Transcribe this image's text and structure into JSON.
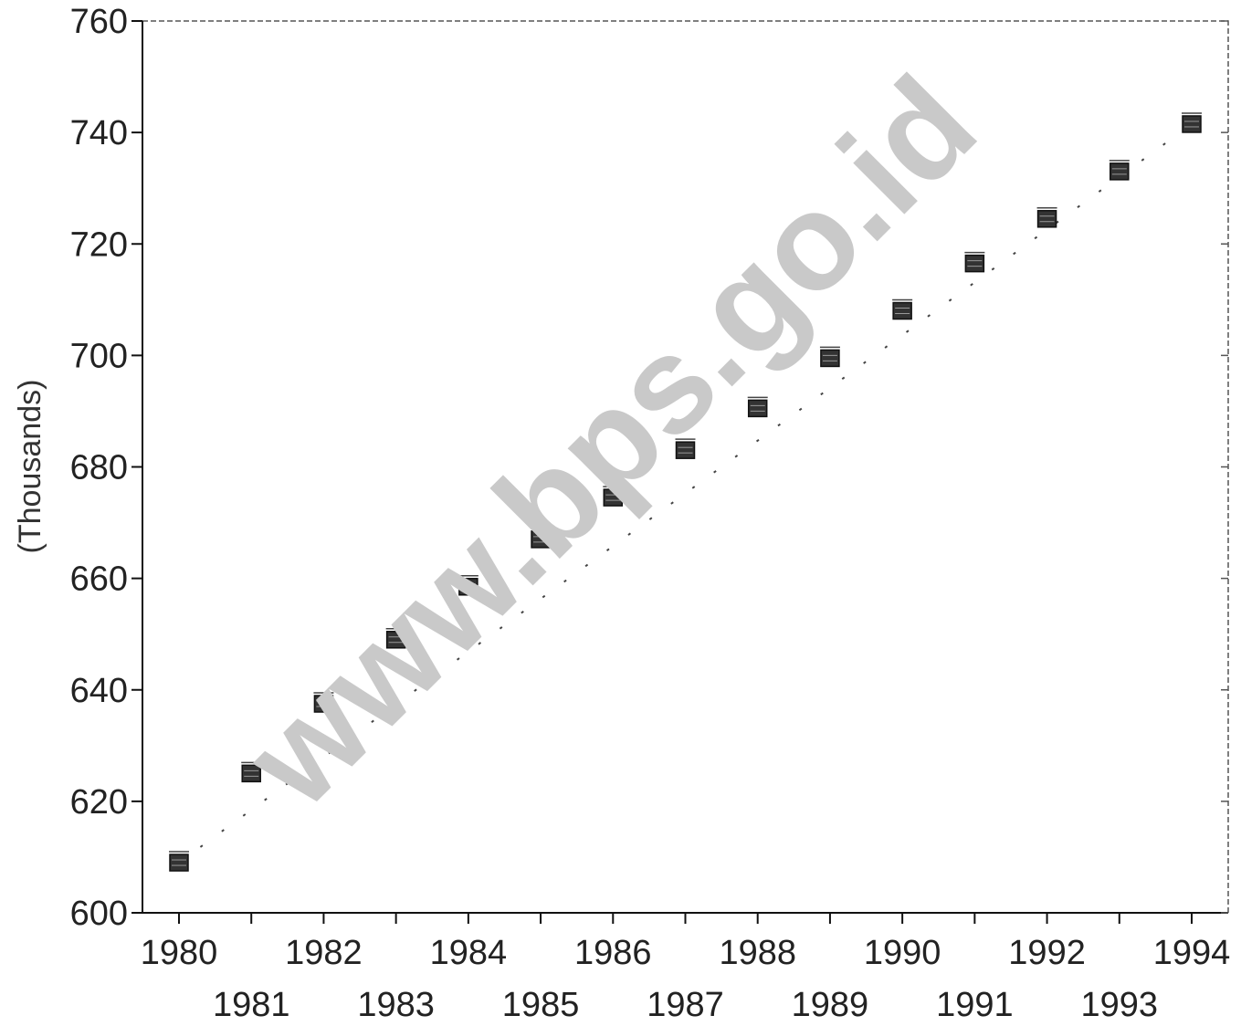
{
  "chart_data": {
    "type": "scatter",
    "title": "",
    "xlabel": "",
    "ylabel": "(Thousands)",
    "x_tick_labels": [
      "1980",
      "1981",
      "1982",
      "1983",
      "1984",
      "1985",
      "1986",
      "1987",
      "1988",
      "1989",
      "1990",
      "1991",
      "1992",
      "1993",
      "1994"
    ],
    "y_tick_labels": [
      "600",
      "620",
      "640",
      "660",
      "680",
      "700",
      "720",
      "740",
      "760"
    ],
    "ylim": [
      600,
      760
    ],
    "xlim": [
      1980,
      1994
    ],
    "grid": false,
    "legend": "none",
    "series": [
      {
        "marker": "square",
        "x": [
          1980,
          1981,
          1982,
          1983,
          1984,
          1985,
          1986,
          1987,
          1988,
          1989,
          1990,
          1991,
          1992,
          1993,
          1994
        ],
        "values": [
          609,
          625,
          637.5,
          649,
          658.5,
          667,
          674.5,
          683,
          690.5,
          699.5,
          708,
          716.5,
          724.5,
          733,
          741.5
        ]
      }
    ],
    "trend_line": {
      "style": "dotted",
      "from": [
        1980,
        609
      ],
      "to": [
        1994,
        741.5
      ]
    },
    "watermark": "www.bps.go.id",
    "colors": {
      "marker": "#222222",
      "axis": "#111111",
      "watermark": "#c9c9c9"
    }
  }
}
